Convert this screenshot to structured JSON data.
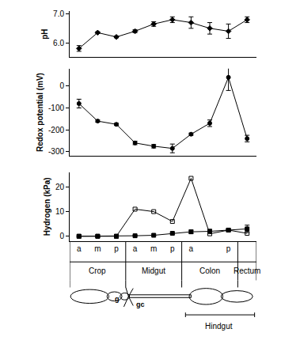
{
  "chart_data": [
    {
      "type": "line",
      "y_label": "pH",
      "categories": [
        "a",
        "m",
        "p",
        "a",
        "m",
        "p",
        "a",
        null,
        "p",
        null
      ],
      "series": [
        {
          "color": "#000000",
          "marker": "diamond",
          "values": [
            5.8,
            6.35,
            6.2,
            6.4,
            6.65,
            6.8,
            6.7,
            6.5,
            6.4,
            6.8
          ],
          "errors": [
            0.1,
            0.03,
            0.03,
            0.05,
            0.08,
            0.1,
            0.2,
            0.2,
            0.25,
            0.1
          ]
        }
      ],
      "ylim": [
        5.5,
        7.1
      ],
      "yticks": [
        {
          "value": 6,
          "label": "6.0"
        },
        {
          "value": 7,
          "label": "7.0"
        }
      ],
      "tick_labels": "y",
      "grid": false
    },
    {
      "type": "line",
      "y_label": "Redox potential (mV)",
      "categories": [
        "a",
        "m",
        "p",
        "a",
        "m",
        "p",
        "a",
        null,
        "p",
        null
      ],
      "series": [
        {
          "color": "#000000",
          "marker": "circle",
          "values": [
            -80,
            -160,
            -175,
            -260,
            -275,
            -285,
            -220,
            -170,
            40,
            -240
          ],
          "errors": [
            20,
            5,
            5,
            8,
            8,
            20,
            5,
            15,
            60,
            15
          ]
        }
      ],
      "ylim": [
        -320,
        80
      ],
      "yticks": [
        -300,
        -200,
        -100,
        0
      ],
      "tick_labels": "y",
      "grid": false
    },
    {
      "type": "line",
      "y_label": "Hydrogen (kPa)",
      "categories": [
        "a",
        "m",
        "p",
        "a",
        "m",
        "p",
        "a",
        null,
        "p",
        null
      ],
      "series": [
        {
          "color": "#000000",
          "marker": "square-open",
          "values": [
            0,
            0,
            0,
            11,
            10,
            6,
            23.5,
            1,
            2.5,
            1.2
          ],
          "errors": [
            null,
            null,
            null,
            null,
            null,
            null,
            null,
            null,
            null,
            null
          ]
        },
        {
          "color": "#000000",
          "marker": "square",
          "values": [
            0,
            0,
            0,
            0.2,
            0.4,
            1.2,
            1.8,
            2,
            2.5,
            3
          ],
          "errors": [
            null,
            null,
            null,
            null,
            null,
            0.3,
            0.7,
            0.8,
            0.4,
            1.5
          ]
        }
      ],
      "ylim": [
        -2,
        26
      ],
      "yticks": [
        0,
        10,
        20
      ],
      "tick_labels": true,
      "grid": false
    }
  ],
  "sections": [
    {
      "label": "Crop",
      "start": 0,
      "end": 2
    },
    {
      "label": "Midgut",
      "start": 3,
      "end": 5
    },
    {
      "label": "Colon",
      "start": 6,
      "end": 8
    },
    {
      "label": "Rectum",
      "start": 9,
      "end": 9
    }
  ],
  "region": {
    "label": "Hindgut",
    "start": 6,
    "end": 9
  },
  "diagram_labels": {
    "gizzard": "g",
    "caeca": "gc"
  }
}
